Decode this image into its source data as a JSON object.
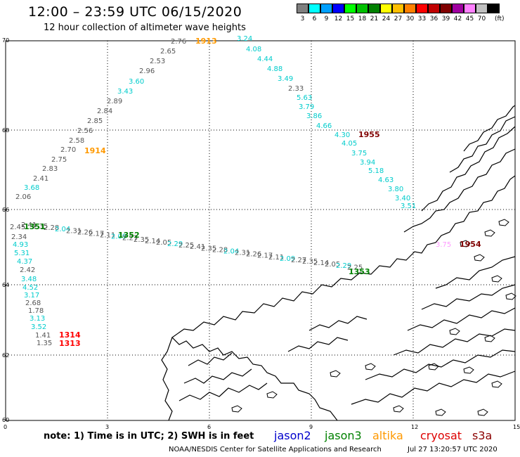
{
  "title": "12:00 – 23:59 UTC 06/15/2020",
  "subtitle": "12 hour collection of altimeter wave heights",
  "legend": {
    "unit": "(ft)",
    "bins": [
      {
        "label": "3",
        "color": "#7f7f7f"
      },
      {
        "label": "6",
        "color": "#00ffff"
      },
      {
        "label": "9",
        "color": "#00a0ff"
      },
      {
        "label": "12",
        "color": "#0000ff"
      },
      {
        "label": "15",
        "color": "#00ff00"
      },
      {
        "label": "18",
        "color": "#00c000"
      },
      {
        "label": "21",
        "color": "#008000"
      },
      {
        "label": "24",
        "color": "#ffff00"
      },
      {
        "label": "27",
        "color": "#ffc000"
      },
      {
        "label": "30",
        "color": "#ff8000"
      },
      {
        "label": "33",
        "color": "#ff0000"
      },
      {
        "label": "36",
        "color": "#c00000"
      },
      {
        "label": "39",
        "color": "#800000"
      },
      {
        "label": "42",
        "color": "#a000a0"
      },
      {
        "label": "45",
        "color": "#ff80ff"
      },
      {
        "label": "70",
        "color": "#c0c0c0"
      },
      {
        "label": "",
        "color": "#000000"
      }
    ]
  },
  "axes": {
    "y_ticks": [
      "70",
      "68",
      "66",
      "64",
      "62",
      "60"
    ],
    "x_ticks": [
      "0",
      "3",
      "6",
      "9",
      "12",
      "15"
    ]
  },
  "note": "note:  1) Time is in UTC;  2) SWH is in feet",
  "satellites": [
    {
      "name": "jason2",
      "color": "#0000cc"
    },
    {
      "name": "jason3",
      "color": "#008000"
    },
    {
      "name": "altika",
      "color": "#ff9900"
    },
    {
      "name": "cryosat",
      "color": "#dd0000"
    },
    {
      "name": "s3a",
      "color": "#8b0000"
    }
  ],
  "footer": "NOAA/NESDIS Center for Satellite Applications and Research",
  "footer_date": "Jul 27 13:20:57 UTC 2020",
  "tracks": {
    "arc_left": [
      {
        "text": "2.76",
        "color": "#555555"
      },
      {
        "text": "2.65",
        "color": "#555555"
      },
      {
        "text": "2.53",
        "color": "#555555"
      },
      {
        "text": "2.96",
        "color": "#555555"
      },
      {
        "text": "3.60",
        "color": "#00cccc"
      },
      {
        "text": "3.43",
        "color": "#00cccc"
      },
      {
        "text": "2.89",
        "color": "#555555"
      },
      {
        "text": "2.84",
        "color": "#555555"
      },
      {
        "text": "2.85",
        "color": "#555555"
      },
      {
        "text": "2.56",
        "color": "#555555"
      },
      {
        "text": "2.58",
        "color": "#555555"
      },
      {
        "text": "2.70",
        "color": "#555555"
      },
      {
        "text": "2.75",
        "color": "#555555"
      },
      {
        "text": "2.83",
        "color": "#555555"
      },
      {
        "text": "2.41",
        "color": "#555555"
      },
      {
        "text": "3.68",
        "color": "#00cccc"
      },
      {
        "text": "2.06",
        "color": "#555555"
      }
    ],
    "arc_right": [
      {
        "text": "3.24",
        "color": "#00cccc"
      },
      {
        "text": "4.08",
        "color": "#00cccc"
      },
      {
        "text": "4.44",
        "color": "#00cccc"
      },
      {
        "text": "4.88",
        "color": "#00cccc"
      },
      {
        "text": "3.49",
        "color": "#00cccc"
      },
      {
        "text": "2.33",
        "color": "#555555"
      },
      {
        "text": "5.63",
        "color": "#00cccc"
      },
      {
        "text": "3.79",
        "color": "#00cccc"
      },
      {
        "text": "3.86",
        "color": "#00cccc"
      },
      {
        "text": "4.66",
        "color": "#00cccc"
      },
      {
        "text": "4.30",
        "color": "#00cccc"
      },
      {
        "text": "4.05",
        "color": "#00cccc"
      },
      {
        "text": "3.75",
        "color": "#00cccc"
      },
      {
        "text": "3.94",
        "color": "#00cccc"
      },
      {
        "text": "5.18",
        "color": "#00cccc"
      },
      {
        "text": "4.63",
        "color": "#00cccc"
      },
      {
        "text": "3.80",
        "color": "#00cccc"
      },
      {
        "text": "3.40",
        "color": "#00cccc"
      },
      {
        "text": "3.51",
        "color": "#00cccc"
      }
    ],
    "left_column": [
      {
        "text": "2.45",
        "color": "#555555"
      },
      {
        "text": "2.34",
        "color": "#555555"
      },
      {
        "text": "4.93",
        "color": "#00cccc"
      },
      {
        "text": "5.31",
        "color": "#00cccc"
      },
      {
        "text": "4.37",
        "color": "#00cccc"
      },
      {
        "text": "2.42",
        "color": "#555555"
      },
      {
        "text": "3.48",
        "color": "#00cccc"
      },
      {
        "text": "4.52",
        "color": "#00cccc"
      },
      {
        "text": "3.17",
        "color": "#00cccc"
      },
      {
        "text": "2.68",
        "color": "#555555"
      },
      {
        "text": "1.78",
        "color": "#555555"
      },
      {
        "text": "3.13",
        "color": "#00cccc"
      },
      {
        "text": "3.52",
        "color": "#00cccc"
      },
      {
        "text": "1.41",
        "color": "#555555"
      },
      {
        "text": "1.35",
        "color": "#555555"
      }
    ],
    "diagonal_values": [
      "2.41",
      "2.35",
      "2.28",
      "2.04",
      "2.31",
      "2.26",
      "2.17",
      "2.11",
      "2.09",
      "2.27",
      "2.35",
      "2.14",
      "2.05",
      "2.29",
      "2.25"
    ],
    "time_labels": [
      {
        "text": "1913",
        "color": "#ff9900"
      },
      {
        "text": "1914",
        "color": "#ff9900"
      },
      {
        "text": "1955",
        "color": "#800000"
      },
      {
        "text": "1954",
        "color": "#800000"
      },
      {
        "text": "1351",
        "color": "#008000"
      },
      {
        "text": "1352",
        "color": "#008000"
      },
      {
        "text": "1353",
        "color": "#008000"
      },
      {
        "text": "1314",
        "color": "#ff0000"
      },
      {
        "text": "1313",
        "color": "#ff0000"
      }
    ],
    "extra_value": {
      "text": "3.75",
      "color": "#ff99ff"
    }
  }
}
